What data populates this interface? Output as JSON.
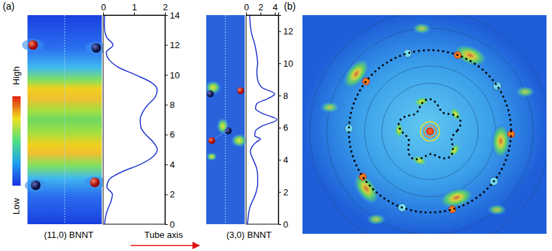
{
  "chart_data": [
    {
      "type": "line",
      "title": "(11,0) BNNT",
      "color": "#1a2fd0",
      "x": [
        0,
        0.5,
        1,
        1.5,
        2,
        2.5,
        3,
        3.5,
        4,
        4.5,
        5,
        5.5,
        6,
        6.5,
        7,
        7.5,
        8,
        8.5,
        9,
        9.5,
        10,
        10.5,
        11,
        11.5,
        12,
        12.5,
        13,
        13.5,
        14
      ],
      "values": [
        0.05,
        0.08,
        0.15,
        0.25,
        0.3,
        0.12,
        0.2,
        0.6,
        1.2,
        1.6,
        1.75,
        1.62,
        1.38,
        1.22,
        1.2,
        1.28,
        1.45,
        1.68,
        1.75,
        1.55,
        1.05,
        0.5,
        0.2,
        0.1,
        0.32,
        0.12,
        0.05,
        0.04,
        0.05
      ],
      "xlim": [
        0,
        14
      ],
      "xticks": [
        0,
        2,
        4,
        6,
        8,
        10,
        12,
        14
      ],
      "ylim": [
        0,
        2
      ],
      "yticks": [
        0,
        1,
        2
      ]
    },
    {
      "type": "line",
      "title": "(3,0) BNNT",
      "color": "#1a2fd0",
      "x": [
        0,
        1,
        2,
        2.5,
        3,
        3.5,
        4,
        4.5,
        4.8,
        5.1,
        5.3,
        5.5,
        5.8,
        6.1,
        6.5,
        6.9,
        7.2,
        7.5,
        7.8,
        8.1,
        8.5,
        9,
        9.5,
        10,
        11,
        12,
        13
      ],
      "values": [
        0.2,
        0.5,
        1.4,
        1.6,
        1.6,
        1.45,
        1.0,
        0.6,
        0.8,
        1.4,
        2.0,
        1.2,
        1.3,
        2.2,
        4.3,
        2.2,
        1.3,
        1.5,
        3.0,
        4.0,
        2.2,
        1.6,
        1.5,
        1.6,
        1.3,
        0.7,
        0.5
      ],
      "xlim": [
        0,
        13
      ],
      "xticks": [
        0,
        2,
        4,
        6,
        8,
        10,
        12
      ],
      "ylim": [
        0,
        4.5
      ],
      "yticks": [
        0,
        2,
        4
      ]
    }
  ],
  "annotations": {
    "panel_labels": [
      "(a)",
      "(b)"
    ],
    "colorbar": [
      "High",
      "Low"
    ],
    "axis_arrow": "Tube axis"
  }
}
